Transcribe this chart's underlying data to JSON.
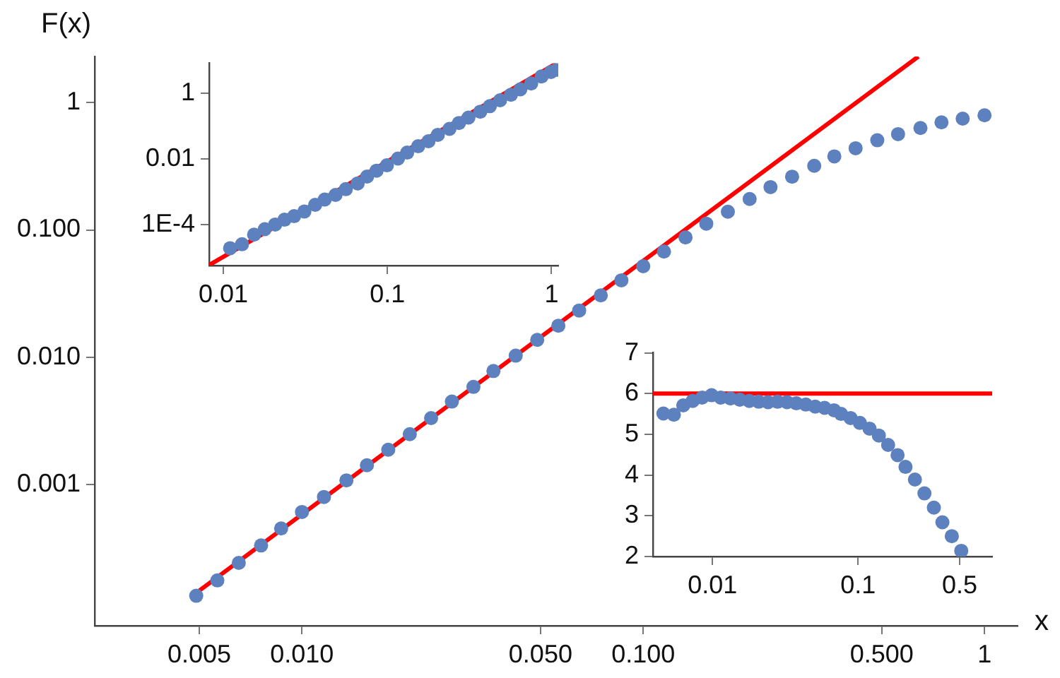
{
  "chart_data": [
    {
      "type": "scatter",
      "xlabel": "x",
      "ylabel": "F(x)",
      "log": "xy",
      "xlim": [
        0.00247,
        1.25
      ],
      "ylim": [
        7.8e-05,
        2.3
      ],
      "xticks": [
        {
          "value": 0.005,
          "label": "0.005"
        },
        {
          "value": 0.01,
          "label": "0.010"
        },
        {
          "value": 0.05,
          "label": "0.050"
        },
        {
          "value": 0.1,
          "label": "0.100"
        },
        {
          "value": 0.5,
          "label": "0.500"
        },
        1
      ],
      "yticks": [
        {
          "value": 0.001,
          "label": "0.001"
        },
        {
          "value": 0.01,
          "label": "0.010"
        },
        {
          "value": 0.1,
          "label": "0.100"
        },
        1
      ],
      "series": [
        {
          "marker": "circle",
          "color": "#5d81be",
          "x": [
            0.0049,
            0.00565,
            0.00653,
            0.00759,
            0.00869,
            0.01,
            0.0116,
            0.0135,
            0.0155,
            0.0179,
            0.0207,
            0.0239,
            0.0275,
            0.0318,
            0.0364,
            0.0423,
            0.0489,
            0.0564,
            0.0649,
            0.0751,
            0.0863,
            0.1,
            0.115,
            0.133,
            0.153,
            0.177,
            0.205,
            0.236,
            0.273,
            0.317,
            0.363,
            0.419,
            0.485,
            0.558,
            0.649,
            0.748,
            0.863,
            1.0
          ],
          "values": [
            0.000134,
            0.000177,
            0.000243,
            0.000333,
            0.000453,
            0.00061,
            0.0008,
            0.00108,
            0.00142,
            0.00188,
            0.00249,
            0.00333,
            0.00449,
            0.00585,
            0.0078,
            0.0103,
            0.0137,
            0.0177,
            0.0233,
            0.0306,
            0.0402,
            0.0519,
            0.0676,
            0.0873,
            0.112,
            0.139,
            0.175,
            0.217,
            0.262,
            0.319,
            0.378,
            0.438,
            0.506,
            0.565,
            0.631,
            0.699,
            0.748,
            0.794
          ]
        },
        {
          "type": "line",
          "marker": "none",
          "color": "#ff0000",
          "x": [
            0.005,
            0.64
          ],
          "values": [
            0.000147,
            2.3
          ]
        }
      ]
    },
    {
      "type": "scatter",
      "log": "xy",
      "xlim": [
        0.0082,
        1.1
      ],
      "ylim": [
        5.6e-06,
        8.3
      ],
      "xticks": [
        0.01,
        0.1,
        1
      ],
      "yticks": [
        {
          "value": 0.0001,
          "label": "1E-4"
        },
        0.01,
        1
      ],
      "series": [
        {
          "marker": "circle",
          "color": "#5d81be",
          "x": [
            0.011,
            0.013,
            0.0154,
            0.0179,
            0.0207,
            0.0236,
            0.027,
            0.0312,
            0.0363,
            0.0415,
            0.0483,
            0.0558,
            0.0659,
            0.0752,
            0.0859,
            0.0993,
            0.116,
            0.132,
            0.154,
            0.178,
            0.203,
            0.239,
            0.273,
            0.312,
            0.368,
            0.421,
            0.486,
            0.566,
            0.646,
            0.752,
            0.871,
            0.993,
            1.08
          ],
          "values": [
            1.9e-05,
            2.5e-05,
            4.9e-05,
            7.2e-05,
            0.0001,
            0.00014,
            0.00018,
            0.00025,
            0.0004,
            0.00058,
            0.0008,
            0.0012,
            0.0018,
            0.0029,
            0.0044,
            0.0064,
            0.0103,
            0.0156,
            0.0244,
            0.0347,
            0.0545,
            0.0827,
            0.125,
            0.183,
            0.277,
            0.408,
            0.618,
            0.91,
            1.33,
            2.0,
            3.3,
            4.5,
            5.3
          ]
        },
        {
          "type": "line",
          "marker": "none",
          "color": "#ff0000",
          "x": [
            0.0082,
            1.06
          ],
          "values": [
            5.8e-06,
            8.0
          ]
        }
      ]
    },
    {
      "type": "scatter",
      "log": "x",
      "xlim": [
        0.0039,
        0.835
      ],
      "ylim": [
        2,
        7
      ],
      "xticks": [
        0.01,
        0.1,
        0.5
      ],
      "yticks": [
        2,
        3,
        4,
        5,
        6,
        7
      ],
      "ref_lines": [
        {
          "axis": "y",
          "value": 6,
          "color": "#ff0000"
        }
      ],
      "series": [
        {
          "marker": "circle",
          "color": "#5d81be",
          "x": [
            0.0046,
            0.00543,
            0.0063,
            0.00731,
            0.00849,
            0.00986,
            0.0114,
            0.0133,
            0.0154,
            0.0179,
            0.0208,
            0.0241,
            0.028,
            0.0325,
            0.0377,
            0.0438,
            0.0508,
            0.0589,
            0.0684,
            0.0765,
            0.0889,
            0.103,
            0.12,
            0.139,
            0.161,
            0.187,
            0.212,
            0.246,
            0.286,
            0.332,
            0.38,
            0.441,
            0.512
          ],
          "values": [
            5.51,
            5.48,
            5.71,
            5.82,
            5.9,
            5.96,
            5.9,
            5.88,
            5.85,
            5.82,
            5.8,
            5.79,
            5.8,
            5.79,
            5.76,
            5.73,
            5.68,
            5.65,
            5.59,
            5.5,
            5.4,
            5.28,
            5.14,
            4.97,
            4.74,
            4.49,
            4.2,
            3.89,
            3.55,
            3.2,
            2.84,
            2.5,
            2.14
          ]
        }
      ]
    }
  ]
}
